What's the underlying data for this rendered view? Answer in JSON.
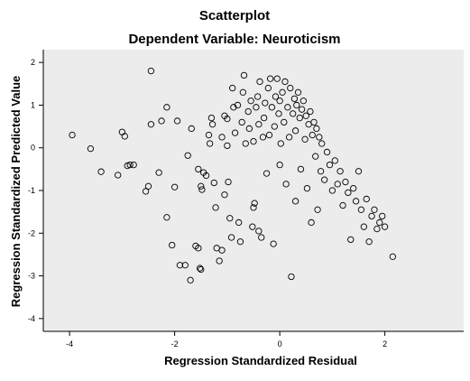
{
  "chart_data": {
    "type": "scatter",
    "title": "Scatterplot",
    "subtitle": "Dependent Variable: Neuroticism",
    "xlabel": "Regression Standardized Residual",
    "ylabel": "Regression Standardized Predicted Value",
    "xlim": [
      -4.5,
      3.5
    ],
    "ylim": [
      -4.3,
      2.3
    ],
    "x_ticks": [
      -4,
      -2,
      0,
      2
    ],
    "x_tick_labels": [
      "-4",
      "-2",
      "0",
      "2"
    ],
    "y_ticks": [
      2,
      1,
      0,
      -1,
      -2,
      -3,
      -4
    ],
    "y_tick_labels": [
      "2",
      "1",
      "0",
      "-1",
      "-2",
      "-3",
      "-4"
    ],
    "grid": false,
    "legend": "none",
    "colors": {
      "plot_background": "#ececec",
      "marker_stroke": "#000000",
      "marker_fill": "none",
      "axis": "#000000"
    },
    "series": [
      {
        "points": [
          [
            -3.95,
            0.3
          ],
          [
            -3.6,
            -0.02
          ],
          [
            -3.4,
            -0.56
          ],
          [
            -3.08,
            -0.64
          ],
          [
            -3.0,
            0.37
          ],
          [
            -2.95,
            0.27
          ],
          [
            -2.9,
            -0.42
          ],
          [
            -2.85,
            -0.4
          ],
          [
            -2.78,
            -0.4
          ],
          [
            -2.55,
            -1.02
          ],
          [
            -2.5,
            -0.9
          ],
          [
            -2.45,
            0.55
          ],
          [
            -2.45,
            1.8
          ],
          [
            -2.3,
            -0.58
          ],
          [
            -2.25,
            0.63
          ],
          [
            -2.15,
            0.95
          ],
          [
            -2.15,
            -1.63
          ],
          [
            -2.05,
            -2.28
          ],
          [
            -2.0,
            -0.92
          ],
          [
            -1.95,
            0.63
          ],
          [
            -1.9,
            -2.75
          ],
          [
            -1.8,
            -2.75
          ],
          [
            -1.75,
            -0.18
          ],
          [
            -1.7,
            -3.1
          ],
          [
            -1.68,
            0.45
          ],
          [
            -1.6,
            -2.3
          ],
          [
            -1.55,
            -2.35
          ],
          [
            -1.55,
            -0.5
          ],
          [
            -1.52,
            -2.82
          ],
          [
            -1.5,
            -2.85
          ],
          [
            -1.5,
            -0.9
          ],
          [
            -1.48,
            -0.98
          ],
          [
            -1.45,
            -0.58
          ],
          [
            -1.4,
            -0.65
          ],
          [
            -1.35,
            0.3
          ],
          [
            -1.33,
            0.1
          ],
          [
            -1.3,
            0.7
          ],
          [
            -1.28,
            0.55
          ],
          [
            -1.25,
            -0.82
          ],
          [
            -1.22,
            -1.4
          ],
          [
            -1.2,
            -2.35
          ],
          [
            -1.15,
            -2.65
          ],
          [
            -1.1,
            -2.4
          ],
          [
            -1.1,
            0.25
          ],
          [
            -1.05,
            0.75
          ],
          [
            -1.05,
            -1.1
          ],
          [
            -1.0,
            0.05
          ],
          [
            -1.0,
            0.68
          ],
          [
            -0.98,
            -0.8
          ],
          [
            -0.95,
            -1.65
          ],
          [
            -0.92,
            -2.1
          ],
          [
            -0.9,
            1.4
          ],
          [
            -0.88,
            0.95
          ],
          [
            -0.85,
            0.35
          ],
          [
            -0.8,
            1.0
          ],
          [
            -0.78,
            -1.75
          ],
          [
            -0.75,
            -2.2
          ],
          [
            -0.72,
            0.6
          ],
          [
            -0.7,
            1.3
          ],
          [
            -0.68,
            1.7
          ],
          [
            -0.65,
            0.1
          ],
          [
            -0.6,
            0.85
          ],
          [
            -0.58,
            0.45
          ],
          [
            -0.55,
            1.1
          ],
          [
            -0.52,
            -1.85
          ],
          [
            -0.5,
            -1.4
          ],
          [
            -0.5,
            0.15
          ],
          [
            -0.48,
            -1.3
          ],
          [
            -0.45,
            0.95
          ],
          [
            -0.42,
            1.2
          ],
          [
            -0.4,
            0.55
          ],
          [
            -0.4,
            -1.95
          ],
          [
            -0.38,
            1.55
          ],
          [
            -0.35,
            -2.1
          ],
          [
            -0.32,
            0.25
          ],
          [
            -0.3,
            0.7
          ],
          [
            -0.28,
            1.05
          ],
          [
            -0.25,
            -0.6
          ],
          [
            -0.22,
            1.4
          ],
          [
            -0.2,
            0.3
          ],
          [
            -0.18,
            1.62
          ],
          [
            -0.15,
            0.95
          ],
          [
            -0.12,
            -2.25
          ],
          [
            -0.1,
            0.5
          ],
          [
            -0.08,
            1.2
          ],
          [
            -0.05,
            1.62
          ],
          [
            -0.02,
            0.8
          ],
          [
            0.0,
            -0.4
          ],
          [
            0.0,
            1.1
          ],
          [
            0.02,
            0.1
          ],
          [
            0.05,
            1.3
          ],
          [
            0.08,
            0.6
          ],
          [
            0.1,
            1.55
          ],
          [
            0.12,
            -0.85
          ],
          [
            0.15,
            0.95
          ],
          [
            0.18,
            0.25
          ],
          [
            0.2,
            1.4
          ],
          [
            0.22,
            -3.02
          ],
          [
            0.25,
            0.8
          ],
          [
            0.28,
            1.15
          ],
          [
            0.3,
            -1.25
          ],
          [
            0.3,
            0.4
          ],
          [
            0.32,
            1.0
          ],
          [
            0.35,
            1.3
          ],
          [
            0.38,
            0.7
          ],
          [
            0.4,
            -0.5
          ],
          [
            0.42,
            0.9
          ],
          [
            0.45,
            1.1
          ],
          [
            0.48,
            0.2
          ],
          [
            0.5,
            0.75
          ],
          [
            0.52,
            -0.95
          ],
          [
            0.55,
            0.55
          ],
          [
            0.58,
            0.85
          ],
          [
            0.6,
            -1.75
          ],
          [
            0.62,
            0.3
          ],
          [
            0.65,
            0.6
          ],
          [
            0.68,
            -0.2
          ],
          [
            0.7,
            0.45
          ],
          [
            0.72,
            -1.45
          ],
          [
            0.75,
            0.25
          ],
          [
            0.78,
            -0.55
          ],
          [
            0.8,
            0.1
          ],
          [
            0.85,
            -0.75
          ],
          [
            0.9,
            -0.1
          ],
          [
            0.95,
            -0.4
          ],
          [
            1.0,
            -1.0
          ],
          [
            1.05,
            -0.3
          ],
          [
            1.1,
            -0.85
          ],
          [
            1.15,
            -0.55
          ],
          [
            1.2,
            -1.35
          ],
          [
            1.25,
            -0.8
          ],
          [
            1.3,
            -1.05
          ],
          [
            1.35,
            -2.15
          ],
          [
            1.4,
            -0.95
          ],
          [
            1.45,
            -1.25
          ],
          [
            1.5,
            -0.55
          ],
          [
            1.55,
            -1.45
          ],
          [
            1.6,
            -1.85
          ],
          [
            1.65,
            -1.2
          ],
          [
            1.7,
            -2.2
          ],
          [
            1.75,
            -1.6
          ],
          [
            1.8,
            -1.45
          ],
          [
            1.85,
            -1.9
          ],
          [
            1.9,
            -1.75
          ],
          [
            1.95,
            -1.6
          ],
          [
            2.0,
            -1.85
          ],
          [
            2.15,
            -2.55
          ]
        ]
      }
    ]
  }
}
